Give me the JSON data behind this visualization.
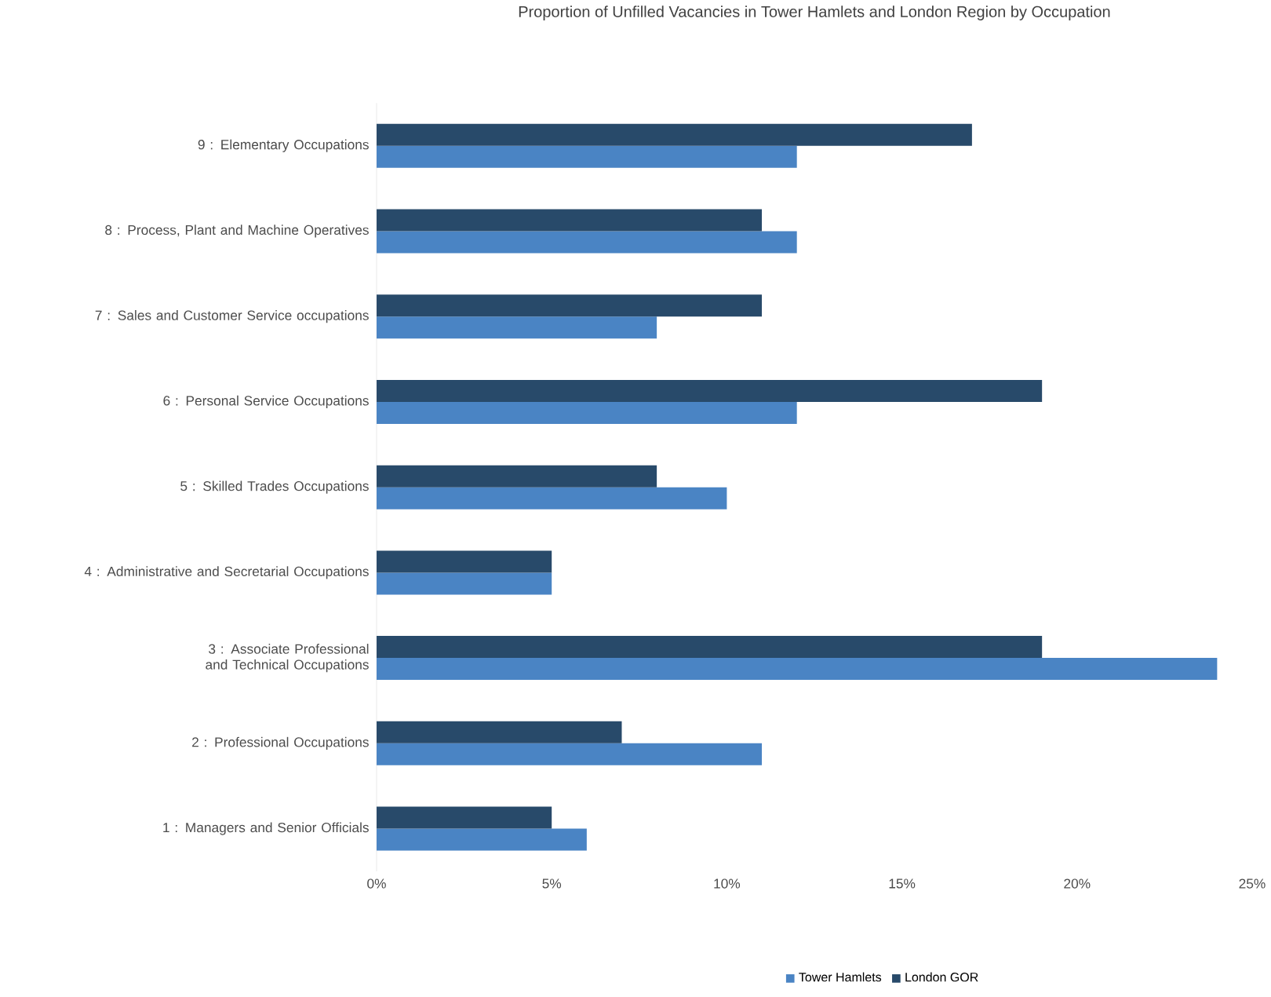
{
  "chart_data": {
    "type": "bar",
    "orientation": "horizontal",
    "title": "Proportion of Unfilled Vacancies in Tower Hamlets and London Region by Occupation",
    "categories": [
      "9 : Elementary Occupations",
      "8 : Process, Plant and Machine Operatives",
      "7 : Sales and Customer Service occupations",
      "6 : Personal Service Occupations",
      "5 : Skilled Trades Occupations",
      "4 : Administrative and Secretarial Occupations",
      "3 : Associate Professional and Technical Occupations",
      "2 : Professional Occupations",
      "1 : Managers and Senior Officials"
    ],
    "series": [
      {
        "name": "Tower Hamlets",
        "color": "#4a84c4",
        "values": [
          12,
          12,
          8,
          12,
          10,
          5,
          24,
          11,
          6
        ]
      },
      {
        "name": "London GOR",
        "color": "#284a6a",
        "values": [
          17,
          11,
          11,
          19,
          8,
          5,
          19,
          7,
          5
        ]
      }
    ],
    "xlim": [
      0,
      25
    ],
    "xticks": [
      {
        "value": 0,
        "label": "0%"
      },
      {
        "value": 5,
        "label": "5%"
      },
      {
        "value": 10,
        "label": "10%"
      },
      {
        "value": 15,
        "label": "15%"
      },
      {
        "value": 20,
        "label": "20%"
      },
      {
        "value": 25,
        "label": "25%"
      }
    ],
    "legend": "bottom"
  }
}
